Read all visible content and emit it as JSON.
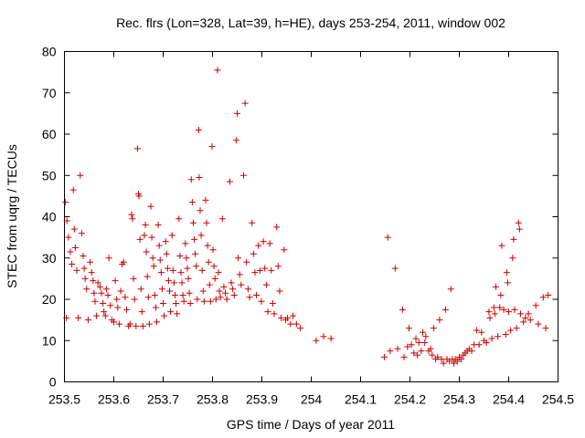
{
  "chart_data": {
    "type": "scatter",
    "title": "Rec. flrs (Lon=328, Lat=39, h=HE), days 253-254, 2011, window 002",
    "xlabel": "GPS time / Days of year 2011",
    "ylabel": "STEC from uqrg / TECUs",
    "xlim": [
      253.5,
      254.5
    ],
    "ylim": [
      0,
      80
    ],
    "x_ticks": [
      "253.5",
      "253.6",
      "253.7",
      "253.8",
      "253.9",
      "254",
      "254.1",
      "254.2",
      "254.3",
      "254.4",
      "254.5"
    ],
    "y_ticks": [
      "0",
      "10",
      "20",
      "30",
      "40",
      "50",
      "60",
      "70",
      "80"
    ],
    "marker": "plus",
    "color": "#cc0000",
    "grid": false,
    "points": [
      [
        253.502,
        43.5
      ],
      [
        253.505,
        39.0
      ],
      [
        253.508,
        35.0
      ],
      [
        253.512,
        31.5
      ],
      [
        253.515,
        28.5
      ],
      [
        253.504,
        15.5
      ],
      [
        253.518,
        46.5
      ],
      [
        253.52,
        37.0
      ],
      [
        253.522,
        32.5
      ],
      [
        253.525,
        27.0
      ],
      [
        253.528,
        15.5
      ],
      [
        253.532,
        50.0
      ],
      [
        253.535,
        36.0
      ],
      [
        253.538,
        30.5
      ],
      [
        253.54,
        27.5
      ],
      [
        253.542,
        25.0
      ],
      [
        253.545,
        22.5
      ],
      [
        253.548,
        15.0
      ],
      [
        253.552,
        29.0
      ],
      [
        253.555,
        26.5
      ],
      [
        253.558,
        24.5
      ],
      [
        253.56,
        21.5
      ],
      [
        253.562,
        19.5
      ],
      [
        253.565,
        16.0
      ],
      [
        253.568,
        24.0
      ],
      [
        253.572,
        23.0
      ],
      [
        253.575,
        21.5
      ],
      [
        253.578,
        19.0
      ],
      [
        253.58,
        17.0
      ],
      [
        253.583,
        16.0
      ],
      [
        253.585,
        22.5
      ],
      [
        253.588,
        21.0
      ],
      [
        253.59,
        30.0
      ],
      [
        253.593,
        18.5
      ],
      [
        253.596,
        15.0
      ],
      [
        253.6,
        14.5
      ],
      [
        253.603,
        24.5
      ],
      [
        253.606,
        20.0
      ],
      [
        253.608,
        18.0
      ],
      [
        253.611,
        14.0
      ],
      [
        253.614,
        22.0
      ],
      [
        253.617,
        28.5
      ],
      [
        253.62,
        29.0
      ],
      [
        253.623,
        20.5
      ],
      [
        253.626,
        17.5
      ],
      [
        253.63,
        13.5
      ],
      [
        253.633,
        14.0
      ],
      [
        253.636,
        40.5
      ],
      [
        253.638,
        39.5
      ],
      [
        253.64,
        25.0
      ],
      [
        253.642,
        20.0
      ],
      [
        253.645,
        13.5
      ],
      [
        253.648,
        56.5
      ],
      [
        253.65,
        45.5
      ],
      [
        253.651,
        45.0
      ],
      [
        253.653,
        34.5
      ],
      [
        253.655,
        22.5
      ],
      [
        253.657,
        17.0
      ],
      [
        253.659,
        13.5
      ],
      [
        253.662,
        35.5
      ],
      [
        253.664,
        38.0
      ],
      [
        253.666,
        31.5
      ],
      [
        253.668,
        25.5
      ],
      [
        253.67,
        20.5
      ],
      [
        253.672,
        14.0
      ],
      [
        253.675,
        42.5
      ],
      [
        253.677,
        35.0
      ],
      [
        253.679,
        30.0
      ],
      [
        253.681,
        28.0
      ],
      [
        253.683,
        21.0
      ],
      [
        253.685,
        18.0
      ],
      [
        253.687,
        14.5
      ],
      [
        253.69,
        38.0
      ],
      [
        253.692,
        33.0
      ],
      [
        253.694,
        29.5
      ],
      [
        253.696,
        26.5
      ],
      [
        253.698,
        22.5
      ],
      [
        253.7,
        19.0
      ],
      [
        253.702,
        16.0
      ],
      [
        253.705,
        34.0
      ],
      [
        253.707,
        31.0
      ],
      [
        253.709,
        27.5
      ],
      [
        253.711,
        24.5
      ],
      [
        253.713,
        22.0
      ],
      [
        253.715,
        17.0
      ],
      [
        253.718,
        35.5
      ],
      [
        253.72,
        27.0
      ],
      [
        253.722,
        24.0
      ],
      [
        253.724,
        21.0
      ],
      [
        253.726,
        19.0
      ],
      [
        253.728,
        16.5
      ],
      [
        253.732,
        39.5
      ],
      [
        253.734,
        30.5
      ],
      [
        253.736,
        26.5
      ],
      [
        253.738,
        24.0
      ],
      [
        253.74,
        21.0
      ],
      [
        253.742,
        19.5
      ],
      [
        253.745,
        33.5
      ],
      [
        253.747,
        30.0
      ],
      [
        253.749,
        27.5
      ],
      [
        253.751,
        25.0
      ],
      [
        253.753,
        21.5
      ],
      [
        253.755,
        19.0
      ],
      [
        253.757,
        49.0
      ],
      [
        253.759,
        43.5
      ],
      [
        253.761,
        38.5
      ],
      [
        253.763,
        34.5
      ],
      [
        253.765,
        31.0
      ],
      [
        253.767,
        28.0
      ],
      [
        253.769,
        20.0
      ],
      [
        253.772,
        61.0
      ],
      [
        253.773,
        49.5
      ],
      [
        253.775,
        41.5
      ],
      [
        253.777,
        35.5
      ],
      [
        253.779,
        27.0
      ],
      [
        253.781,
        22.0
      ],
      [
        253.783,
        19.5
      ],
      [
        253.786,
        44.0
      ],
      [
        253.788,
        38.5
      ],
      [
        253.79,
        33.0
      ],
      [
        253.792,
        29.0
      ],
      [
        253.794,
        23.5
      ],
      [
        253.796,
        19.5
      ],
      [
        253.799,
        57.0
      ],
      [
        253.801,
        32.0
      ],
      [
        253.803,
        28.0
      ],
      [
        253.805,
        25.0
      ],
      [
        253.807,
        20.0
      ],
      [
        253.81,
        75.5
      ],
      [
        253.812,
        26.5
      ],
      [
        253.814,
        22.0
      ],
      [
        253.816,
        20.5
      ],
      [
        253.82,
        39.5
      ],
      [
        253.823,
        23.0
      ],
      [
        253.826,
        21.5
      ],
      [
        253.829,
        20.0
      ],
      [
        253.835,
        48.5
      ],
      [
        253.838,
        24.0
      ],
      [
        253.841,
        22.5
      ],
      [
        253.844,
        21.0
      ],
      [
        253.848,
        58.5
      ],
      [
        253.85,
        65.0
      ],
      [
        253.852,
        30.0
      ],
      [
        253.855,
        26.0
      ],
      [
        253.858,
        23.5
      ],
      [
        253.863,
        50.0
      ],
      [
        253.866,
        67.5
      ],
      [
        253.869,
        29.0
      ],
      [
        253.872,
        22.5
      ],
      [
        253.875,
        20.5
      ],
      [
        253.88,
        38.5
      ],
      [
        253.883,
        31.0
      ],
      [
        253.886,
        26.5
      ],
      [
        253.889,
        21.0
      ],
      [
        253.893,
        33.0
      ],
      [
        253.896,
        27.0
      ],
      [
        253.899,
        19.5
      ],
      [
        253.903,
        34.0
      ],
      [
        253.906,
        27.5
      ],
      [
        253.909,
        23.5
      ],
      [
        253.912,
        17.0
      ],
      [
        253.916,
        33.5
      ],
      [
        253.919,
        27.0
      ],
      [
        253.922,
        19.0
      ],
      [
        253.925,
        16.5
      ],
      [
        253.93,
        37.5
      ],
      [
        253.933,
        28.0
      ],
      [
        253.936,
        22.0
      ],
      [
        253.939,
        15.5
      ],
      [
        253.945,
        32.0
      ],
      [
        253.948,
        15.0
      ],
      [
        253.952,
        15.5
      ],
      [
        253.958,
        14.0
      ],
      [
        253.963,
        16.0
      ],
      [
        253.97,
        14.0
      ],
      [
        253.978,
        13.0
      ],
      [
        254.01,
        10.0
      ],
      [
        254.025,
        11.0
      ],
      [
        254.04,
        10.5
      ],
      [
        254.148,
        6.0
      ],
      [
        254.155,
        35.0
      ],
      [
        254.16,
        7.5
      ],
      [
        254.17,
        27.5
      ],
      [
        254.175,
        8.0
      ],
      [
        254.185,
        17.5
      ],
      [
        254.188,
        6.0
      ],
      [
        254.195,
        8.5
      ],
      [
        254.198,
        13.0
      ],
      [
        254.203,
        9.0
      ],
      [
        254.208,
        7.0
      ],
      [
        254.212,
        10.5
      ],
      [
        254.215,
        6.5
      ],
      [
        254.218,
        9.5
      ],
      [
        254.223,
        7.5
      ],
      [
        254.226,
        12.0
      ],
      [
        254.23,
        9.5
      ],
      [
        254.232,
        11.0
      ],
      [
        254.238,
        7.5
      ],
      [
        254.242,
        8.0
      ],
      [
        254.245,
        6.5
      ],
      [
        254.248,
        13.0
      ],
      [
        254.252,
        5.5
      ],
      [
        254.256,
        6.0
      ],
      [
        254.26,
        15.0
      ],
      [
        254.264,
        5.5
      ],
      [
        254.268,
        4.5
      ],
      [
        254.272,
        17.5
      ],
      [
        254.275,
        5.5
      ],
      [
        254.28,
        5.0
      ],
      [
        254.283,
        22.5
      ],
      [
        254.286,
        5.5
      ],
      [
        254.289,
        4.5
      ],
      [
        254.292,
        5.5
      ],
      [
        254.296,
        5.0
      ],
      [
        254.3,
        6.0
      ],
      [
        254.304,
        5.5
      ],
      [
        254.308,
        6.5
      ],
      [
        254.312,
        7.0
      ],
      [
        254.316,
        7.5
      ],
      [
        254.32,
        8.0
      ],
      [
        254.325,
        7.5
      ],
      [
        254.33,
        9.0
      ],
      [
        254.335,
        12.5
      ],
      [
        254.34,
        9.0
      ],
      [
        254.345,
        12.0
      ],
      [
        254.35,
        10.0
      ],
      [
        254.355,
        9.5
      ],
      [
        254.36,
        17.0
      ],
      [
        254.362,
        15.5
      ],
      [
        254.366,
        10.5
      ],
      [
        254.37,
        18.0
      ],
      [
        254.372,
        16.5
      ],
      [
        254.374,
        23.0
      ],
      [
        254.378,
        11.0
      ],
      [
        254.382,
        18.0
      ],
      [
        254.384,
        21.0
      ],
      [
        254.386,
        33.0
      ],
      [
        254.39,
        17.5
      ],
      [
        254.394,
        11.5
      ],
      [
        254.396,
        26.5
      ],
      [
        254.398,
        24.0
      ],
      [
        254.4,
        17.0
      ],
      [
        254.404,
        12.5
      ],
      [
        254.408,
        30.0
      ],
      [
        254.41,
        34.5
      ],
      [
        254.412,
        17.5
      ],
      [
        254.416,
        13.0
      ],
      [
        254.42,
        38.5
      ],
      [
        254.422,
        37.0
      ],
      [
        254.424,
        16.5
      ],
      [
        254.43,
        14.5
      ],
      [
        254.434,
        15.5
      ],
      [
        254.44,
        16.5
      ],
      [
        254.444,
        15.0
      ],
      [
        254.455,
        18.5
      ],
      [
        254.46,
        14.0
      ],
      [
        254.47,
        20.5
      ],
      [
        254.475,
        13.0
      ],
      [
        254.48,
        21.0
      ]
    ]
  }
}
